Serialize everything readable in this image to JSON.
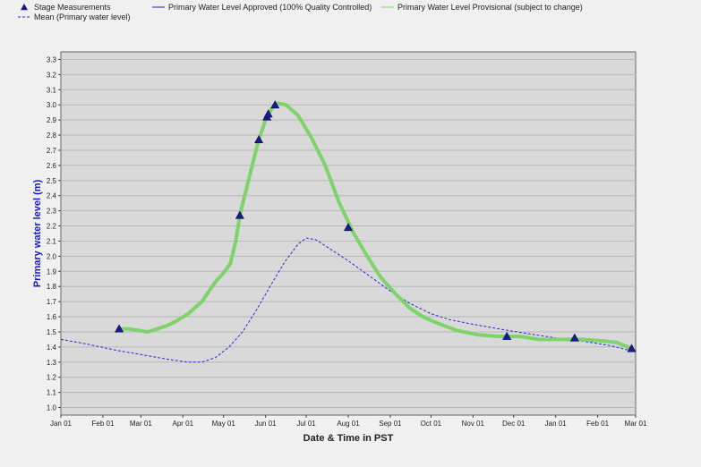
{
  "chart_data": {
    "type": "line",
    "title": "",
    "xlabel": "Date & Time in PST",
    "ylabel": "Primary water level (m)",
    "ylim": [
      0.95,
      3.35
    ],
    "xlim": [
      "2001-01-01",
      "2002-03-01"
    ],
    "grid": true,
    "legend_position": "top-left",
    "y_ticks": [
      "1.0",
      "1.1",
      "1.2",
      "1.3",
      "1.4",
      "1.5",
      "1.6",
      "1.7",
      "1.8",
      "1.9",
      "2.0",
      "2.1",
      "2.2",
      "2.3",
      "2.4",
      "2.5",
      "2.6",
      "2.7",
      "2.8",
      "2.9",
      "3.0",
      "3.1",
      "3.2",
      "3.3"
    ],
    "x_ticks": [
      {
        "date": "2001-01-01",
        "label": "Jan 01"
      },
      {
        "date": "2001-02-01",
        "label": "Feb 01"
      },
      {
        "date": "2001-03-01",
        "label": "Mar 01"
      },
      {
        "date": "2001-04-01",
        "label": "Apr 01"
      },
      {
        "date": "2001-05-01",
        "label": "May 01"
      },
      {
        "date": "2001-06-01",
        "label": "Jun 01"
      },
      {
        "date": "2001-07-01",
        "label": "Jul 01"
      },
      {
        "date": "2001-08-01",
        "label": "Aug 01"
      },
      {
        "date": "2001-09-01",
        "label": "Sep 01"
      },
      {
        "date": "2001-10-01",
        "label": "Oct 01"
      },
      {
        "date": "2001-11-01",
        "label": "Nov 01"
      },
      {
        "date": "2001-12-01",
        "label": "Dec 01"
      },
      {
        "date": "2002-01-01",
        "label": "Jan 01"
      },
      {
        "date": "2002-02-01",
        "label": "Feb 01"
      },
      {
        "date": "2002-03-01",
        "label": "Mar 01"
      }
    ],
    "legend": [
      {
        "label": "Stage Measurements",
        "kind": "triangle",
        "color": "#1a1a8c"
      },
      {
        "label": "Primary Water Level Approved (100% Quality Controlled)",
        "kind": "line",
        "color": "#1a1acc"
      },
      {
        "label": "Primary Water Level Provisional (subject to change)",
        "kind": "line",
        "color": "#7fd36b"
      },
      {
        "label": "Mean (Primary water level)",
        "kind": "dashed",
        "color": "#2b2bd8"
      }
    ],
    "series": [
      {
        "name": "Stage Measurements",
        "kind": "scatter",
        "color": "#1a1a8c",
        "points": [
          [
            "2001-02-13",
            1.52
          ],
          [
            "2001-05-13",
            2.27
          ],
          [
            "2001-05-27",
            2.77
          ],
          [
            "2001-06-02",
            2.92
          ],
          [
            "2001-06-03",
            2.94
          ],
          [
            "2001-06-08",
            3.0
          ],
          [
            "2001-08-01",
            2.19
          ],
          [
            "2001-11-26",
            1.47
          ],
          [
            "2002-01-15",
            1.46
          ],
          [
            "2002-02-26",
            1.39
          ]
        ]
      },
      {
        "name": "Primary Water Level Provisional (subject to change)",
        "kind": "line",
        "color": "#7fd36b",
        "points": [
          [
            "2001-02-13",
            1.52
          ],
          [
            "2001-02-20",
            1.52
          ],
          [
            "2001-02-27",
            1.51
          ],
          [
            "2001-03-06",
            1.5
          ],
          [
            "2001-03-13",
            1.52
          ],
          [
            "2001-03-20",
            1.54
          ],
          [
            "2001-03-27",
            1.57
          ],
          [
            "2001-04-05",
            1.62
          ],
          [
            "2001-04-15",
            1.7
          ],
          [
            "2001-04-25",
            1.83
          ],
          [
            "2001-05-01",
            1.89
          ],
          [
            "2001-05-06",
            1.95
          ],
          [
            "2001-05-10",
            2.1
          ],
          [
            "2001-05-13",
            2.27
          ],
          [
            "2001-05-18",
            2.45
          ],
          [
            "2001-05-23",
            2.63
          ],
          [
            "2001-05-27",
            2.77
          ],
          [
            "2001-06-01",
            2.9
          ],
          [
            "2001-06-05",
            2.97
          ],
          [
            "2001-06-10",
            3.01
          ],
          [
            "2001-06-16",
            3.0
          ],
          [
            "2001-06-25",
            2.93
          ],
          [
            "2001-07-05",
            2.78
          ],
          [
            "2001-07-15",
            2.6
          ],
          [
            "2001-07-25",
            2.36
          ],
          [
            "2001-08-05",
            2.15
          ],
          [
            "2001-08-15",
            2.0
          ],
          [
            "2001-08-25",
            1.86
          ],
          [
            "2001-09-05",
            1.75
          ],
          [
            "2001-09-15",
            1.66
          ],
          [
            "2001-09-25",
            1.6
          ],
          [
            "2001-10-05",
            1.56
          ],
          [
            "2001-10-20",
            1.51
          ],
          [
            "2001-11-05",
            1.48
          ],
          [
            "2001-11-20",
            1.47
          ],
          [
            "2001-12-05",
            1.47
          ],
          [
            "2001-12-20",
            1.45
          ],
          [
            "2002-01-05",
            1.45
          ],
          [
            "2002-01-20",
            1.45
          ],
          [
            "2002-02-05",
            1.44
          ],
          [
            "2002-02-15",
            1.43
          ],
          [
            "2002-02-26",
            1.39
          ]
        ]
      },
      {
        "name": "Mean (Primary water level)",
        "kind": "dashed",
        "color": "#2b2bd8",
        "points": [
          [
            "2001-01-01",
            1.45
          ],
          [
            "2001-01-20",
            1.42
          ],
          [
            "2001-02-10",
            1.38
          ],
          [
            "2001-03-01",
            1.35
          ],
          [
            "2001-03-20",
            1.32
          ],
          [
            "2001-04-05",
            1.3
          ],
          [
            "2001-04-15",
            1.3
          ],
          [
            "2001-04-25",
            1.33
          ],
          [
            "2001-05-05",
            1.4
          ],
          [
            "2001-05-15",
            1.5
          ],
          [
            "2001-05-25",
            1.64
          ],
          [
            "2001-06-05",
            1.81
          ],
          [
            "2001-06-15",
            1.96
          ],
          [
            "2001-06-25",
            2.08
          ],
          [
            "2001-07-01",
            2.12
          ],
          [
            "2001-07-08",
            2.11
          ],
          [
            "2001-07-20",
            2.04
          ],
          [
            "2001-08-01",
            1.97
          ],
          [
            "2001-08-15",
            1.88
          ],
          [
            "2001-09-01",
            1.77
          ],
          [
            "2001-09-15",
            1.69
          ],
          [
            "2001-10-01",
            1.62
          ],
          [
            "2001-10-15",
            1.58
          ],
          [
            "2001-11-01",
            1.55
          ],
          [
            "2001-11-20",
            1.52
          ],
          [
            "2001-12-10",
            1.49
          ],
          [
            "2002-01-01",
            1.46
          ],
          [
            "2002-01-20",
            1.44
          ],
          [
            "2002-02-10",
            1.41
          ],
          [
            "2002-02-28",
            1.37
          ]
        ]
      }
    ]
  }
}
